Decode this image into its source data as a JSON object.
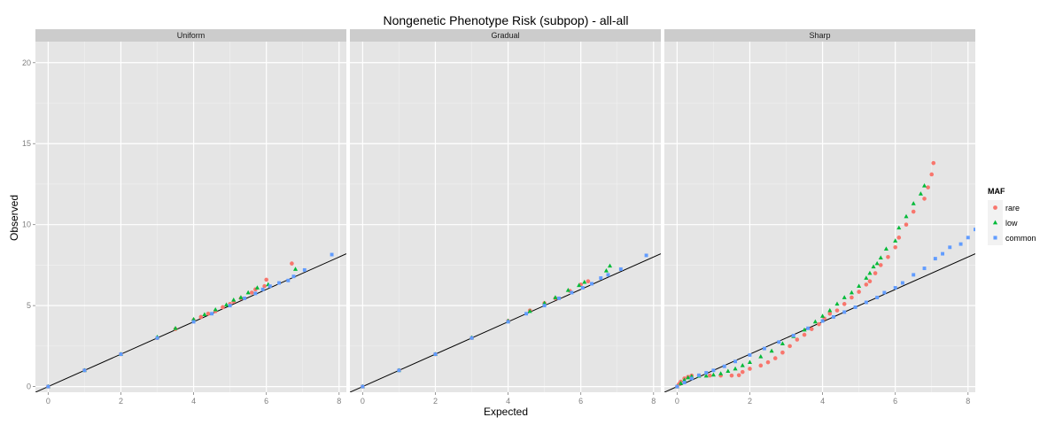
{
  "chart_data": {
    "type": "scatter",
    "title": "Nongenetic Phenotype Risk (subpop) - all-all",
    "xlabel": "Expected",
    "ylabel": "Observed",
    "xlim": [
      -0.35,
      8.2
    ],
    "ylim": [
      -0.35,
      21.3
    ],
    "x_ticks": [
      0,
      2,
      4,
      6,
      8
    ],
    "y_ticks": [
      0,
      5,
      10,
      15,
      20
    ],
    "facets": [
      "Uniform",
      "Gradual",
      "Sharp"
    ],
    "reference_line": {
      "slope": 1,
      "intercept": 0
    },
    "legend": {
      "title": "MAF",
      "position": "right",
      "entries": [
        {
          "label": "rare",
          "color": "#F8766D",
          "shape": "circle"
        },
        {
          "label": "low",
          "color": "#00BA38",
          "shape": "triangle"
        },
        {
          "label": "common",
          "color": "#619CFF",
          "shape": "square"
        }
      ]
    },
    "panels": [
      {
        "facet": "Uniform",
        "series": [
          {
            "name": "rare",
            "points": [
              [
                0,
                0
              ],
              [
                1,
                1
              ],
              [
                2,
                2
              ],
              [
                3,
                3
              ],
              [
                3.5,
                3.55
              ],
              [
                4,
                4.1
              ],
              [
                4.2,
                4.3
              ],
              [
                4.4,
                4.5
              ],
              [
                4.6,
                4.65
              ],
              [
                4.8,
                4.9
              ],
              [
                5.0,
                5.1
              ],
              [
                5.1,
                5.25
              ],
              [
                5.3,
                5.45
              ],
              [
                5.6,
                5.8
              ],
              [
                5.7,
                6.0
              ],
              [
                5.95,
                6.2
              ],
              [
                6.0,
                6.6
              ],
              [
                6.7,
                7.6
              ]
            ]
          },
          {
            "name": "low",
            "points": [
              [
                0,
                0
              ],
              [
                1,
                1
              ],
              [
                2,
                2
              ],
              [
                3,
                3.05
              ],
              [
                3.5,
                3.6
              ],
              [
                4,
                4.15
              ],
              [
                4.3,
                4.45
              ],
              [
                4.6,
                4.75
              ],
              [
                4.9,
                5.05
              ],
              [
                5.1,
                5.35
              ],
              [
                5.3,
                5.5
              ],
              [
                5.5,
                5.8
              ],
              [
                5.75,
                6.1
              ],
              [
                6.05,
                6.3
              ],
              [
                6.8,
                7.25
              ]
            ]
          },
          {
            "name": "common",
            "points": [
              [
                0,
                0
              ],
              [
                1,
                1
              ],
              [
                2,
                2
              ],
              [
                3,
                3
              ],
              [
                4,
                4
              ],
              [
                4.5,
                4.5
              ],
              [
                5.0,
                5.0
              ],
              [
                5.4,
                5.45
              ],
              [
                5.7,
                5.75
              ],
              [
                5.9,
                6.0
              ],
              [
                6.1,
                6.2
              ],
              [
                6.35,
                6.4
              ],
              [
                6.6,
                6.55
              ],
              [
                6.75,
                6.8
              ],
              [
                7.05,
                7.2
              ],
              [
                7.8,
                8.15
              ]
            ]
          }
        ]
      },
      {
        "facet": "Gradual",
        "series": [
          {
            "name": "rare",
            "points": [
              [
                0,
                0
              ],
              [
                1,
                1
              ],
              [
                2,
                2
              ],
              [
                3,
                3
              ],
              [
                4,
                4.05
              ],
              [
                4.6,
                4.7
              ],
              [
                5.0,
                5.15
              ],
              [
                5.3,
                5.45
              ],
              [
                5.7,
                5.9
              ],
              [
                6.0,
                6.3
              ],
              [
                6.2,
                6.5
              ]
            ]
          },
          {
            "name": "low",
            "points": [
              [
                0,
                0
              ],
              [
                1,
                1
              ],
              [
                2,
                2
              ],
              [
                3,
                3.02
              ],
              [
                4,
                4.05
              ],
              [
                4.6,
                4.65
              ],
              [
                5.0,
                5.15
              ],
              [
                5.3,
                5.5
              ],
              [
                5.65,
                5.95
              ],
              [
                5.95,
                6.25
              ],
              [
                6.1,
                6.45
              ],
              [
                6.7,
                7.15
              ],
              [
                6.8,
                7.45
              ]
            ]
          },
          {
            "name": "common",
            "points": [
              [
                0,
                0
              ],
              [
                1,
                1
              ],
              [
                2,
                2
              ],
              [
                3,
                3
              ],
              [
                4,
                4
              ],
              [
                4.5,
                4.5
              ],
              [
                5.0,
                5.0
              ],
              [
                5.4,
                5.45
              ],
              [
                5.75,
                5.8
              ],
              [
                6.05,
                6.1
              ],
              [
                6.3,
                6.35
              ],
              [
                6.55,
                6.7
              ],
              [
                6.75,
                6.9
              ],
              [
                7.1,
                7.25
              ],
              [
                7.8,
                8.1
              ]
            ]
          }
        ]
      },
      {
        "facet": "Sharp",
        "series": [
          {
            "name": "rare",
            "points": [
              [
                0,
                0
              ],
              [
                0.05,
                0.15
              ],
              [
                0.1,
                0.3
              ],
              [
                0.2,
                0.5
              ],
              [
                0.3,
                0.6
              ],
              [
                0.4,
                0.68
              ],
              [
                0.6,
                0.68
              ],
              [
                0.9,
                0.68
              ],
              [
                1.2,
                0.68
              ],
              [
                1.5,
                0.68
              ],
              [
                1.7,
                0.7
              ],
              [
                1.8,
                0.9
              ],
              [
                2.0,
                1.1
              ],
              [
                2.3,
                1.3
              ],
              [
                2.5,
                1.5
              ],
              [
                2.7,
                1.75
              ],
              [
                2.9,
                2.1
              ],
              [
                3.1,
                2.5
              ],
              [
                3.3,
                2.9
              ],
              [
                3.5,
                3.2
              ],
              [
                3.7,
                3.55
              ],
              [
                3.9,
                3.85
              ],
              [
                4.05,
                4.2
              ],
              [
                4.2,
                4.5
              ],
              [
                4.4,
                4.7
              ],
              [
                4.6,
                5.1
              ],
              [
                4.8,
                5.5
              ],
              [
                5.0,
                5.85
              ],
              [
                5.2,
                6.3
              ],
              [
                5.3,
                6.5
              ],
              [
                5.45,
                7.0
              ],
              [
                5.6,
                7.5
              ],
              [
                5.8,
                8.0
              ],
              [
                6.0,
                8.6
              ],
              [
                6.1,
                9.2
              ],
              [
                6.3,
                10.0
              ],
              [
                6.5,
                10.8
              ],
              [
                6.8,
                11.6
              ],
              [
                6.9,
                12.3
              ],
              [
                7.0,
                13.1
              ],
              [
                7.05,
                13.8
              ]
            ]
          },
          {
            "name": "low",
            "points": [
              [
                0,
                0
              ],
              [
                0.1,
                0.2
              ],
              [
                0.2,
                0.4
              ],
              [
                0.3,
                0.55
              ],
              [
                0.4,
                0.63
              ],
              [
                0.6,
                0.65
              ],
              [
                0.8,
                0.66
              ],
              [
                1.0,
                0.72
              ],
              [
                1.2,
                0.8
              ],
              [
                1.4,
                0.95
              ],
              [
                1.6,
                1.1
              ],
              [
                1.8,
                1.3
              ],
              [
                2.0,
                1.5
              ],
              [
                2.3,
                1.85
              ],
              [
                2.6,
                2.2
              ],
              [
                2.9,
                2.65
              ],
              [
                3.2,
                3.1
              ],
              [
                3.5,
                3.5
              ],
              [
                3.8,
                4.0
              ],
              [
                4.0,
                4.35
              ],
              [
                4.2,
                4.7
              ],
              [
                4.4,
                5.1
              ],
              [
                4.6,
                5.5
              ],
              [
                4.8,
                5.8
              ],
              [
                5.0,
                6.2
              ],
              [
                5.2,
                6.7
              ],
              [
                5.3,
                7.0
              ],
              [
                5.4,
                7.4
              ],
              [
                5.5,
                7.6
              ],
              [
                5.6,
                7.95
              ],
              [
                5.75,
                8.5
              ],
              [
                6.0,
                9.0
              ],
              [
                6.1,
                9.8
              ],
              [
                6.3,
                10.5
              ],
              [
                6.5,
                11.3
              ],
              [
                6.7,
                11.9
              ],
              [
                6.8,
                12.4
              ]
            ]
          },
          {
            "name": "common",
            "points": [
              [
                0,
                0
              ],
              [
                0.2,
                0.25
              ],
              [
                0.4,
                0.5
              ],
              [
                0.6,
                0.7
              ],
              [
                0.8,
                0.85
              ],
              [
                1.0,
                1.0
              ],
              [
                1.3,
                1.25
              ],
              [
                1.6,
                1.55
              ],
              [
                2.0,
                1.95
              ],
              [
                2.4,
                2.35
              ],
              [
                2.8,
                2.75
              ],
              [
                3.2,
                3.15
              ],
              [
                3.6,
                3.6
              ],
              [
                4.0,
                4.05
              ],
              [
                4.3,
                4.3
              ],
              [
                4.6,
                4.6
              ],
              [
                4.9,
                4.9
              ],
              [
                5.2,
                5.2
              ],
              [
                5.5,
                5.5
              ],
              [
                5.7,
                5.8
              ],
              [
                6.0,
                6.1
              ],
              [
                6.2,
                6.4
              ],
              [
                6.5,
                6.9
              ],
              [
                6.8,
                7.3
              ],
              [
                7.1,
                7.9
              ],
              [
                7.3,
                8.2
              ],
              [
                7.5,
                8.6
              ],
              [
                7.8,
                8.8
              ],
              [
                8.0,
                9.2
              ],
              [
                8.2,
                9.7
              ],
              [
                8.4,
                10.4
              ],
              [
                8.5,
                10.8
              ]
            ]
          }
        ]
      }
    ]
  }
}
